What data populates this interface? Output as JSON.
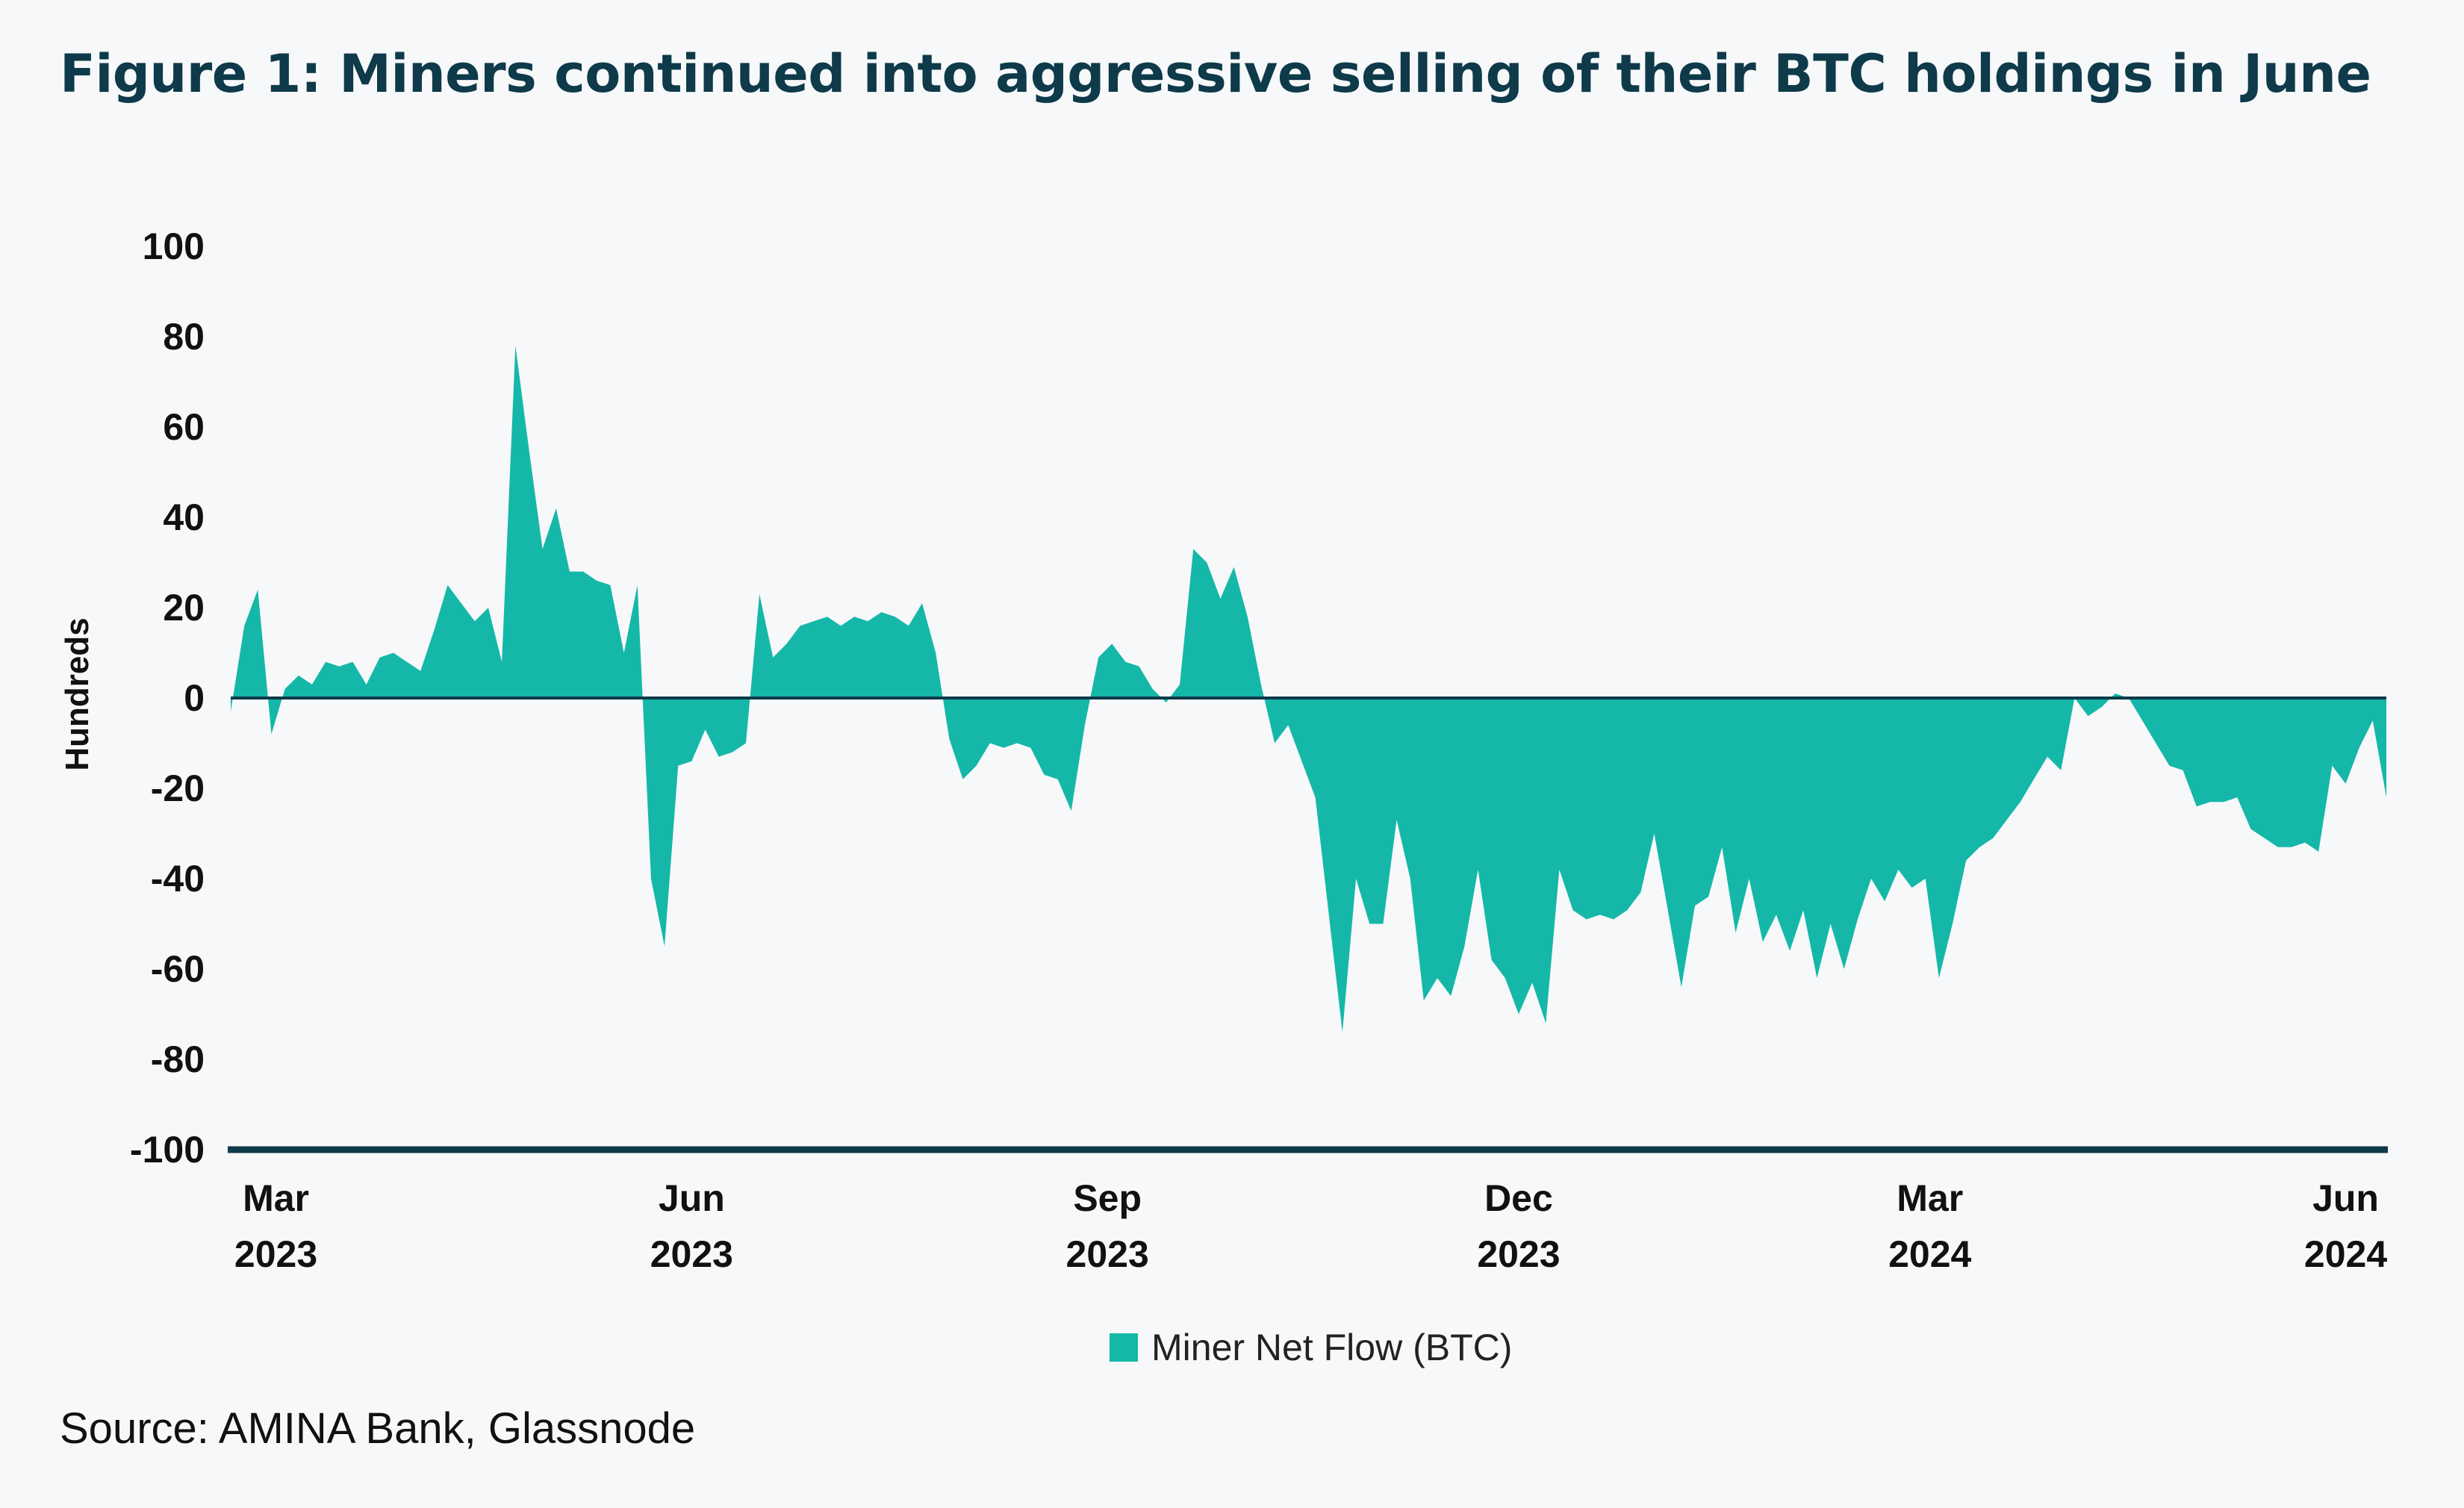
{
  "title": "Figure 1: Miners continued into aggressive selling of their BTC holdings in June",
  "source": "Source: AMINA Bank, Glassnode",
  "colors": {
    "fill": "#15b8a8",
    "axis": "#0e3a4a",
    "background": "#f7f8fa"
  },
  "chart_data": {
    "type": "area",
    "title": "Figure 1: Miners continued into aggressive selling of their BTC holdings in June",
    "ylabel": "Hundreds",
    "xlabel": "",
    "ylim": [
      -100,
      100
    ],
    "yticks": [
      100,
      80,
      60,
      40,
      20,
      0,
      -20,
      -40,
      -60,
      -80,
      -100
    ],
    "xticks": [
      {
        "date": "2023-03-01",
        "month": "Mar",
        "year": "2023"
      },
      {
        "date": "2023-06-01",
        "month": "Jun",
        "year": "2023"
      },
      {
        "date": "2023-09-01",
        "month": "Sep",
        "year": "2023"
      },
      {
        "date": "2023-12-01",
        "month": "Dec",
        "year": "2023"
      },
      {
        "date": "2024-03-01",
        "month": "Mar",
        "year": "2024"
      },
      {
        "date": "2024-06-01",
        "month": "Jun",
        "year": "2024"
      }
    ],
    "xlim": [
      "2023-02-19",
      "2024-06-10"
    ],
    "grid": false,
    "legend_placement": "bottom-center",
    "series": [
      {
        "name": "Miner Net Flow (BTC)",
        "x": [
          "2023-02-19",
          "2023-02-22",
          "2023-02-25",
          "2023-02-28",
          "2023-03-03",
          "2023-03-06",
          "2023-03-09",
          "2023-03-12",
          "2023-03-15",
          "2023-03-18",
          "2023-03-21",
          "2023-03-24",
          "2023-03-27",
          "2023-03-30",
          "2023-04-02",
          "2023-04-05",
          "2023-04-08",
          "2023-04-11",
          "2023-04-14",
          "2023-04-17",
          "2023-04-20",
          "2023-04-23",
          "2023-04-26",
          "2023-04-29",
          "2023-05-02",
          "2023-05-05",
          "2023-05-08",
          "2023-05-11",
          "2023-05-14",
          "2023-05-17",
          "2023-05-20",
          "2023-05-23",
          "2023-05-26",
          "2023-05-29",
          "2023-06-01",
          "2023-06-04",
          "2023-06-07",
          "2023-06-10",
          "2023-06-13",
          "2023-06-16",
          "2023-06-19",
          "2023-06-22",
          "2023-06-25",
          "2023-06-28",
          "2023-07-01",
          "2023-07-04",
          "2023-07-07",
          "2023-07-10",
          "2023-07-13",
          "2023-07-16",
          "2023-07-19",
          "2023-07-22",
          "2023-07-25",
          "2023-07-28",
          "2023-07-31",
          "2023-08-03",
          "2023-08-06",
          "2023-08-09",
          "2023-08-12",
          "2023-08-15",
          "2023-08-18",
          "2023-08-21",
          "2023-08-24",
          "2023-08-27",
          "2023-08-30",
          "2023-09-02",
          "2023-09-05",
          "2023-09-08",
          "2023-09-11",
          "2023-09-14",
          "2023-09-17",
          "2023-09-20",
          "2023-09-23",
          "2023-09-26",
          "2023-09-29",
          "2023-10-02",
          "2023-10-05",
          "2023-10-08",
          "2023-10-11",
          "2023-10-14",
          "2023-10-17",
          "2023-10-20",
          "2023-10-23",
          "2023-10-26",
          "2023-10-29",
          "2023-11-01",
          "2023-11-04",
          "2023-11-07",
          "2023-11-10",
          "2023-11-13",
          "2023-11-16",
          "2023-11-19",
          "2023-11-22",
          "2023-11-25",
          "2023-11-28",
          "2023-12-01",
          "2023-12-04",
          "2023-12-07",
          "2023-12-10",
          "2023-12-13",
          "2023-12-16",
          "2023-12-19",
          "2023-12-22",
          "2023-12-25",
          "2023-12-28",
          "2023-12-31",
          "2024-01-03",
          "2024-01-06",
          "2024-01-09",
          "2024-01-12",
          "2024-01-15",
          "2024-01-18",
          "2024-01-21",
          "2024-01-24",
          "2024-01-27",
          "2024-01-30",
          "2024-02-02",
          "2024-02-05",
          "2024-02-08",
          "2024-02-11",
          "2024-02-14",
          "2024-02-17",
          "2024-02-20",
          "2024-02-23",
          "2024-02-26",
          "2024-02-29",
          "2024-03-03",
          "2024-03-06",
          "2024-03-09",
          "2024-03-12",
          "2024-03-15",
          "2024-03-18",
          "2024-03-21",
          "2024-03-24",
          "2024-03-27",
          "2024-03-30",
          "2024-04-02",
          "2024-04-05",
          "2024-04-08",
          "2024-04-11",
          "2024-04-14",
          "2024-04-17",
          "2024-04-20",
          "2024-04-23",
          "2024-04-26",
          "2024-04-29",
          "2024-05-02",
          "2024-05-05",
          "2024-05-08",
          "2024-05-11",
          "2024-05-14",
          "2024-05-17",
          "2024-05-20",
          "2024-05-23",
          "2024-05-26",
          "2024-05-29",
          "2024-06-01",
          "2024-06-04",
          "2024-06-07",
          "2024-06-10"
        ],
        "y": [
          -3,
          16,
          24,
          -8,
          2,
          5,
          3,
          8,
          7,
          8,
          3,
          9,
          10,
          8,
          6,
          15,
          25,
          21,
          17,
          20,
          8,
          78,
          55,
          33,
          42,
          28,
          28,
          26,
          25,
          10,
          25,
          -40,
          -55,
          -15,
          -14,
          -7,
          -13,
          -12,
          -10,
          23,
          9,
          12,
          16,
          17,
          18,
          16,
          18,
          17,
          19,
          18,
          16,
          21,
          10,
          -9,
          -18,
          -15,
          -10,
          -11,
          -10,
          -11,
          -17,
          -18,
          -25,
          -6,
          9,
          12,
          8,
          7,
          2,
          -1,
          3,
          33,
          30,
          22,
          29,
          18,
          3,
          -10,
          -6,
          -14,
          -22,
          -48,
          -74,
          -40,
          -50,
          -50,
          -27,
          -40,
          -67,
          -62,
          -66,
          -55,
          -38,
          -58,
          -62,
          -70,
          -63,
          -72,
          -38,
          -47,
          -49,
          -48,
          -49,
          -47,
          -43,
          -30,
          -47,
          -64,
          -46,
          -44,
          -33,
          -52,
          -40,
          -54,
          -48,
          -56,
          -47,
          -62,
          -50,
          -60,
          -49,
          -40,
          -45,
          -38,
          -42,
          -40,
          -62,
          -50,
          -36,
          -33,
          -31,
          -27,
          -23,
          -18,
          -13,
          -16,
          0,
          -4,
          -2,
          1,
          0,
          -5,
          -10,
          -15,
          -16,
          -24,
          -23,
          -23,
          -22,
          -29,
          -31,
          -33,
          -33,
          -32,
          -34,
          -15,
          -19,
          -11,
          -5,
          -22
        ]
      }
    ]
  }
}
